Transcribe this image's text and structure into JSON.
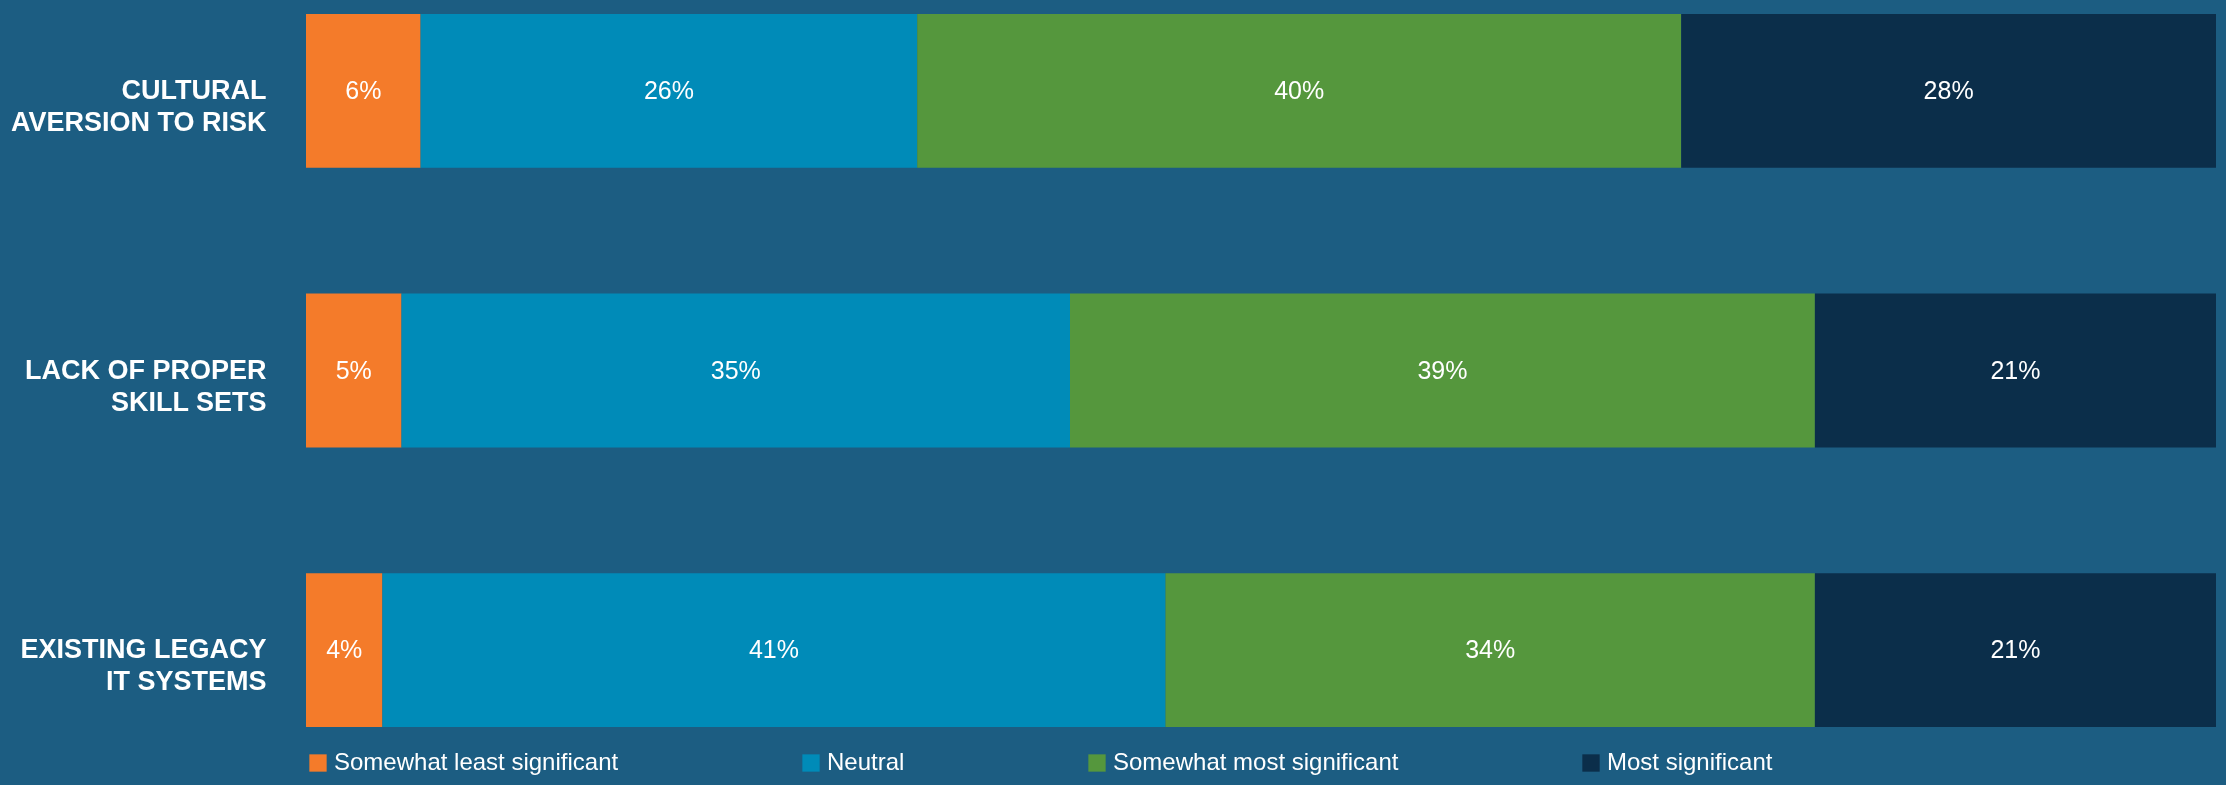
{
  "chart_data": {
    "type": "bar",
    "orientation": "horizontal",
    "stacked": true,
    "categories": [
      "CULTURAL AVERSION TO RISK",
      "LACK OF PROPER SKILL SETS",
      "EXISTING LEGACY IT SYSTEMS"
    ],
    "series": [
      {
        "name": "Somewhat least significant",
        "color": "#f47b2a",
        "values": [
          6,
          5,
          4
        ],
        "value_labels": [
          "6%",
          "5%",
          "4%"
        ]
      },
      {
        "name": "Neutral",
        "color": "#008bb8",
        "values": [
          26,
          35,
          41
        ],
        "value_labels": [
          "26%",
          "35%",
          "41%"
        ]
      },
      {
        "name": "Somewhat most significant",
        "color": "#55973d",
        "values": [
          40,
          39,
          34
        ],
        "value_labels": [
          "40%",
          "39%",
          "34%"
        ]
      },
      {
        "name": "Most significant",
        "color": "#0b2e4a",
        "values": [
          28,
          21,
          21
        ],
        "value_labels": [
          "28%",
          "21%",
          "21%"
        ]
      }
    ],
    "xlim": [
      0,
      100
    ],
    "tick_labels": "y",
    "legend": "bottom"
  }
}
